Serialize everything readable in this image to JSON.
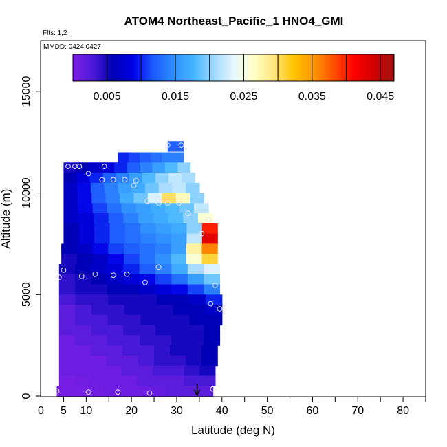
{
  "chart_data": {
    "type": "heatmap",
    "title": "ATOM4 Northeast_Pacific_1 HNO4_GMI",
    "annotations": [
      "Flts: 1,2",
      "MMDD: 0424,0427"
    ],
    "xlabel": "Latitude (deg N)",
    "ylabel": "Altitude (m)",
    "xlim": [
      0,
      85
    ],
    "ylim": [
      0,
      17500
    ],
    "x_ticks": [
      0,
      5,
      10,
      20,
      30,
      40,
      50,
      60,
      70,
      80
    ],
    "y_ticks": [
      0,
      5000,
      10000,
      15000
    ],
    "colorbar": {
      "range": [
        0,
        0.047
      ],
      "tick_values": [
        0.005,
        0.015,
        0.025,
        0.035,
        0.045
      ],
      "tick_labels": [
        "0.005",
        "0.015",
        "0.025",
        "0.035",
        "0.045"
      ],
      "colors": [
        "#7f1fe6",
        "#4a1ad8",
        "#0000b4",
        "#0000e6",
        "#1e5aff",
        "#2f8cff",
        "#43b4ff",
        "#9ed8ff",
        "#e6f6ff",
        "#ffffc8",
        "#ffe680",
        "#ffc400",
        "#ff9600",
        "#ff5000",
        "#ff0000",
        "#d20000",
        "#a01414"
      ]
    },
    "grid": "off",
    "heatmap_rows": [
      {
        "alt": 12300,
        "x0": 28,
        "x1": 31.5,
        "values": [
          0.012,
          0.012
        ]
      },
      {
        "alt": 11750,
        "x0": 17,
        "x1": 31.5,
        "values": [
          0.01,
          0.011,
          0.012,
          0.013,
          0.014,
          0.014
        ]
      },
      {
        "alt": 11250,
        "x0": 5,
        "x1": 33,
        "values": [
          0.005,
          0.006,
          0.007,
          0.008,
          0.01,
          0.012,
          0.014,
          0.016,
          0.018,
          0.02
        ]
      },
      {
        "alt": 10750,
        "x0": 5,
        "x1": 34,
        "values": [
          0.006,
          0.008,
          0.01,
          0.012,
          0.014,
          0.016,
          0.018,
          0.02,
          0.022,
          0.021
        ]
      },
      {
        "alt": 10250,
        "x0": 5,
        "x1": 35,
        "values": [
          0.007,
          0.009,
          0.012,
          0.014,
          0.016,
          0.017,
          0.019,
          0.021,
          0.022,
          0.02
        ]
      },
      {
        "alt": 9750,
        "x0": 5,
        "x1": 36,
        "values": [
          0.007,
          0.009,
          0.012,
          0.014,
          0.017,
          0.019,
          0.023,
          0.03,
          0.027,
          0.02
        ]
      },
      {
        "alt": 9250,
        "x0": 5,
        "x1": 37,
        "values": [
          0.007,
          0.009,
          0.011,
          0.013,
          0.015,
          0.016,
          0.017,
          0.018,
          0.019,
          0.022
        ]
      },
      {
        "alt": 8750,
        "x0": 5,
        "x1": 38,
        "values": [
          0.007,
          0.008,
          0.01,
          0.012,
          0.014,
          0.016,
          0.017,
          0.018,
          0.02,
          0.026
        ]
      },
      {
        "alt": 8250,
        "x0": 5,
        "x1": 39,
        "values": [
          0.006,
          0.008,
          0.01,
          0.012,
          0.013,
          0.015,
          0.016,
          0.017,
          0.02,
          0.04
        ]
      },
      {
        "alt": 7750,
        "x0": 5,
        "x1": 39,
        "values": [
          0.006,
          0.008,
          0.01,
          0.012,
          0.013,
          0.014,
          0.015,
          0.016,
          0.022,
          0.043
        ]
      },
      {
        "alt": 7250,
        "x0": 4.5,
        "x1": 39,
        "values": [
          0.006,
          0.007,
          0.009,
          0.011,
          0.012,
          0.013,
          0.014,
          0.016,
          0.028,
          0.036
        ]
      },
      {
        "alt": 6750,
        "x0": 4.5,
        "x1": 39,
        "values": [
          0.005,
          0.006,
          0.007,
          0.009,
          0.011,
          0.013,
          0.015,
          0.018,
          0.026,
          0.031
        ]
      },
      {
        "alt": 6250,
        "x0": 4,
        "x1": 39.5,
        "values": [
          0.005,
          0.006,
          0.007,
          0.008,
          0.01,
          0.012,
          0.014,
          0.017,
          0.021,
          0.023
        ]
      },
      {
        "alt": 5750,
        "x0": 4,
        "x1": 39.5,
        "values": [
          0.004,
          0.005,
          0.006,
          0.007,
          0.008,
          0.009,
          0.011,
          0.013,
          0.016,
          0.019
        ]
      },
      {
        "alt": 5250,
        "x0": 4,
        "x1": 39.5,
        "values": [
          0.004,
          0.005,
          0.005,
          0.006,
          0.006,
          0.007,
          0.008,
          0.009,
          0.011,
          0.014
        ]
      },
      {
        "alt": 4750,
        "x0": 4,
        "x1": 40,
        "values": [
          0.003,
          0.004,
          0.004,
          0.005,
          0.005,
          0.005,
          0.006,
          0.006,
          0.007,
          0.01
        ]
      },
      {
        "alt": 4250,
        "x0": 4,
        "x1": 40,
        "values": [
          0.002,
          0.003,
          0.004,
          0.004,
          0.005,
          0.005,
          0.005,
          0.006,
          0.006,
          0.007
        ]
      },
      {
        "alt": 3750,
        "x0": 4,
        "x1": 40,
        "values": [
          0.002,
          0.003,
          0.003,
          0.004,
          0.004,
          0.005,
          0.005,
          0.005,
          0.006,
          0.006
        ]
      },
      {
        "alt": 3250,
        "x0": 4,
        "x1": 39.5,
        "values": [
          0.002,
          0.002,
          0.003,
          0.003,
          0.004,
          0.004,
          0.005,
          0.005,
          0.005,
          0.006
        ]
      },
      {
        "alt": 2750,
        "x0": 4,
        "x1": 39.5,
        "values": [
          0.001,
          0.002,
          0.002,
          0.003,
          0.003,
          0.004,
          0.004,
          0.005,
          0.005,
          0.006
        ]
      },
      {
        "alt": 2250,
        "x0": 4,
        "x1": 39,
        "values": [
          0.001,
          0.001,
          0.002,
          0.002,
          0.003,
          0.003,
          0.004,
          0.005,
          0.005,
          0.006
        ]
      },
      {
        "alt": 1750,
        "x0": 4,
        "x1": 39,
        "values": [
          0.001,
          0.001,
          0.001,
          0.002,
          0.002,
          0.003,
          0.004,
          0.004,
          0.005,
          0.006
        ]
      },
      {
        "alt": 1250,
        "x0": 4,
        "x1": 38.5,
        "values": [
          0.001,
          0.001,
          0.001,
          0.001,
          0.002,
          0.002,
          0.003,
          0.003,
          0.004,
          0.005
        ]
      },
      {
        "alt": 750,
        "x0": 4,
        "x1": 38.5,
        "values": [
          0.0005,
          0.0008,
          0.001,
          0.001,
          0.001,
          0.002,
          0.002,
          0.002,
          0.003,
          0.003
        ]
      },
      {
        "alt": 250,
        "x0": 3.5,
        "x1": 38,
        "values": [
          0.0005,
          0.0005,
          0.0008,
          0.001,
          0.001,
          0.001,
          0.0015,
          0.002,
          0.002,
          0.002
        ]
      }
    ],
    "points": [
      {
        "x": 28,
        "y": 12350
      },
      {
        "x": 31,
        "y": 12350
      },
      {
        "x": 6,
        "y": 11300
      },
      {
        "x": 7.5,
        "y": 11300
      },
      {
        "x": 8.5,
        "y": 11300
      },
      {
        "x": 14,
        "y": 11300
      },
      {
        "x": 10.5,
        "y": 10950
      },
      {
        "x": 13.5,
        "y": 10650
      },
      {
        "x": 16,
        "y": 10650
      },
      {
        "x": 18.5,
        "y": 10650
      },
      {
        "x": 21,
        "y": 10600
      },
      {
        "x": 20.5,
        "y": 10350
      },
      {
        "x": 23.5,
        "y": 9600
      },
      {
        "x": 26,
        "y": 9500
      },
      {
        "x": 28,
        "y": 9500
      },
      {
        "x": 30.5,
        "y": 9500
      },
      {
        "x": 32.5,
        "y": 9000
      },
      {
        "x": 37,
        "y": 8700
      },
      {
        "x": 35.5,
        "y": 8000
      },
      {
        "x": 26,
        "y": 6350
      },
      {
        "x": 5,
        "y": 6200
      },
      {
        "x": 12,
        "y": 6000
      },
      {
        "x": 16,
        "y": 5950
      },
      {
        "x": 19,
        "y": 6000
      },
      {
        "x": 4,
        "y": 5850
      },
      {
        "x": 9,
        "y": 5900
      },
      {
        "x": 23,
        "y": 5600
      },
      {
        "x": 38.5,
        "y": 5450
      },
      {
        "x": 37.5,
        "y": 4550
      },
      {
        "x": 39.5,
        "y": 4300
      },
      {
        "x": 3.5,
        "y": 250
      },
      {
        "x": 10.5,
        "y": 200
      },
      {
        "x": 17,
        "y": 200
      },
      {
        "x": 24,
        "y": 150
      },
      {
        "x": 38,
        "y": 350
      }
    ],
    "arrow": {
      "x": 34.5,
      "y_top": 600,
      "y_bottom": 0
    }
  }
}
